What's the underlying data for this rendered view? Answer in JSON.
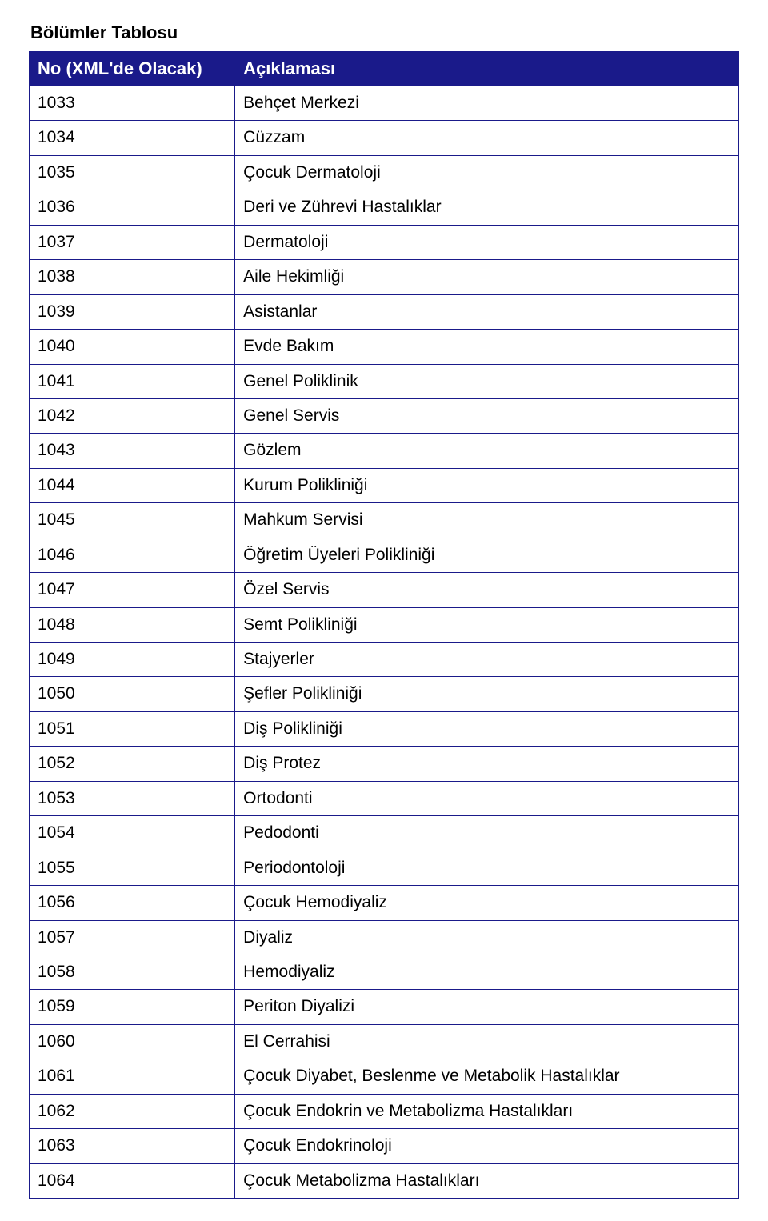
{
  "title": "Bölümler Tablosu",
  "table": {
    "columns": [
      "No (XML'de Olacak)",
      "Açıklaması"
    ],
    "rows": [
      [
        "1033",
        "Behçet Merkezi"
      ],
      [
        "1034",
        "Cüzzam"
      ],
      [
        "1035",
        "Çocuk Dermatoloji"
      ],
      [
        "1036",
        "Deri ve Zührevi Hastalıklar"
      ],
      [
        "1037",
        "Dermatoloji"
      ],
      [
        "1038",
        "Aile Hekimliği"
      ],
      [
        "1039",
        "Asistanlar"
      ],
      [
        "1040",
        "Evde Bakım"
      ],
      [
        "1041",
        "Genel Poliklinik"
      ],
      [
        "1042",
        "Genel Servis"
      ],
      [
        "1043",
        "Gözlem"
      ],
      [
        "1044",
        "Kurum Polikliniği"
      ],
      [
        "1045",
        "Mahkum Servisi"
      ],
      [
        "1046",
        "Öğretim Üyeleri Polikliniği"
      ],
      [
        "1047",
        "Özel Servis"
      ],
      [
        "1048",
        "Semt Polikliniği"
      ],
      [
        "1049",
        "Stajyerler"
      ],
      [
        "1050",
        "Şefler Polikliniği"
      ],
      [
        "1051",
        "Diş Polikliniği"
      ],
      [
        "1052",
        "Diş Protez"
      ],
      [
        "1053",
        "Ortodonti"
      ],
      [
        "1054",
        "Pedodonti"
      ],
      [
        "1055",
        "Periodontoloji"
      ],
      [
        "1056",
        "Çocuk Hemodiyaliz"
      ],
      [
        "1057",
        "Diyaliz"
      ],
      [
        "1058",
        "Hemodiyaliz"
      ],
      [
        "1059",
        "Periton Diyalizi"
      ],
      [
        "1060",
        "El Cerrahisi"
      ],
      [
        "1061",
        "Çocuk Diyabet, Beslenme ve Metabolik Hastalıklar"
      ],
      [
        "1062",
        "Çocuk Endokrin ve Metabolizma Hastalıkları"
      ],
      [
        "1063",
        "Çocuk Endokrinoloji"
      ],
      [
        "1064",
        "Çocuk Metabolizma Hastalıkları"
      ]
    ],
    "header_bg": "#1a1a8a",
    "header_fg": "#ffffff",
    "border_color": "#1a1a8a",
    "body_fontsize": 21,
    "header_fontsize": 22,
    "col_widths_pct": [
      28,
      72
    ]
  }
}
